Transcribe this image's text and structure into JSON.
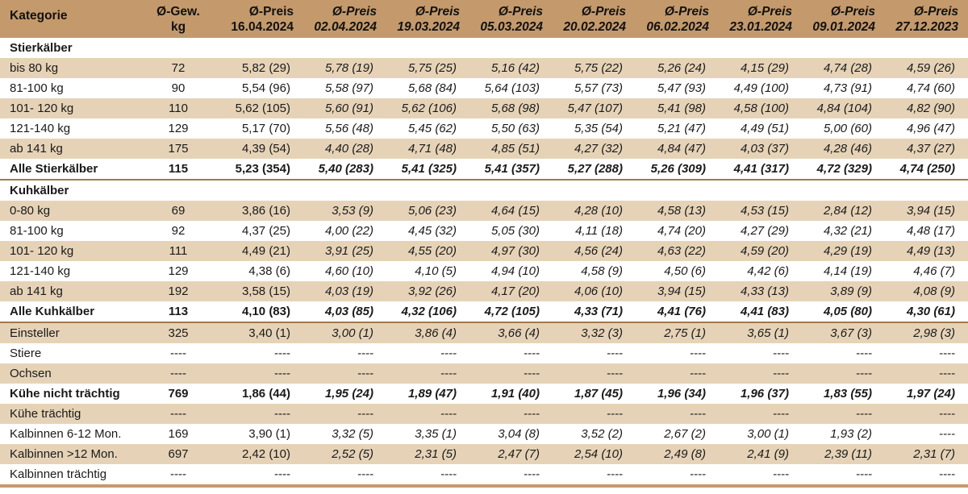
{
  "header": {
    "category": "Kategorie",
    "weight_line1": "Ø-Gew.",
    "weight_line2": "kg",
    "price_label": "Ø-Preis",
    "dates": [
      "16.04.2024",
      "02.04.2024",
      "19.03.2024",
      "05.03.2024",
      "20.02.2024",
      "06.02.2024",
      "23.01.2024",
      "09.01.2024",
      "27.12.2023"
    ]
  },
  "rows": [
    {
      "type": "section",
      "label": "Stierkälber"
    },
    {
      "type": "data",
      "label": "bis 80 kg",
      "weight": "72",
      "prices": [
        "5,82 (29)",
        "5,78 (19)",
        "5,75 (25)",
        "5,16 (42)",
        "5,75 (22)",
        "5,26 (24)",
        "4,15 (29)",
        "4,74 (28)",
        "4,59 (26)"
      ]
    },
    {
      "type": "data",
      "label": "81-100 kg",
      "weight": "90",
      "prices": [
        "5,54 (96)",
        "5,58 (97)",
        "5,68 (84)",
        "5,64 (103)",
        "5,57 (73)",
        "5,47 (93)",
        "4,49 (100)",
        "4,73 (91)",
        "4,74 (60)"
      ]
    },
    {
      "type": "data",
      "label": "101- 120 kg",
      "weight": "110",
      "prices": [
        "5,62 (105)",
        "5,60 (91)",
        "5,62 (106)",
        "5,68 (98)",
        "5,47 (107)",
        "5,41 (98)",
        "4,58 (100)",
        "4,84 (104)",
        "4,82 (90)"
      ]
    },
    {
      "type": "data",
      "label": "121-140 kg",
      "weight": "129",
      "prices": [
        "5,17 (70)",
        "5,56 (48)",
        "5,45 (62)",
        "5,50 (63)",
        "5,35 (54)",
        "5,21 (47)",
        "4,49 (51)",
        "5,00 (60)",
        "4,96 (47)"
      ]
    },
    {
      "type": "data",
      "label": "ab 141 kg",
      "weight": "175",
      "prices": [
        "4,39 (54)",
        "4,40 (28)",
        "4,71 (48)",
        "4,85 (51)",
        "4,27 (32)",
        "4,84 (47)",
        "4,03 (37)",
        "4,28 (46)",
        "4,37 (27)"
      ]
    },
    {
      "type": "total",
      "label": "Alle Stierkälber",
      "weight": "115",
      "prices": [
        "5,23 (354)",
        "5,40 (283)",
        "5,41 (325)",
        "5,41 (357)",
        "5,27 (288)",
        "5,26 (309)",
        "4,41 (317)",
        "4,72 (329)",
        "4,74 (250)"
      ]
    },
    {
      "type": "section",
      "label": "Kuhkälber"
    },
    {
      "type": "data",
      "label": "0-80 kg",
      "weight": "69",
      "prices": [
        "3,86 (16)",
        "3,53 (9)",
        "5,06 (23)",
        "4,64 (15)",
        "4,28 (10)",
        "4,58 (13)",
        "4,53 (15)",
        "2,84 (12)",
        "3,94 (15)"
      ]
    },
    {
      "type": "data",
      "label": "81-100 kg",
      "weight": "92",
      "prices": [
        "4,37 (25)",
        "4,00 (22)",
        "4,45 (32)",
        "5,05 (30)",
        "4,11 (18)",
        "4,74 (20)",
        "4,27 (29)",
        "4,32 (21)",
        "4,48 (17)"
      ]
    },
    {
      "type": "data",
      "label": "101- 120 kg",
      "weight": "111",
      "prices": [
        "4,49 (21)",
        "3,91 (25)",
        "4,55 (20)",
        "4,97 (30)",
        "4,56 (24)",
        "4,63 (22)",
        "4,59 (20)",
        "4,29 (19)",
        "4,49 (13)"
      ]
    },
    {
      "type": "data",
      "label": "121-140 kg",
      "weight": "129",
      "prices": [
        "4,38 (6)",
        "4,60 (10)",
        "4,10 (5)",
        "4,94 (10)",
        "4,58 (9)",
        "4,50 (6)",
        "4,42 (6)",
        "4,14 (19)",
        "4,46 (7)"
      ]
    },
    {
      "type": "data",
      "label": "ab 141 kg",
      "weight": "192",
      "prices": [
        "3,58 (15)",
        "4,03 (19)",
        "3,92 (26)",
        "4,17 (20)",
        "4,06 (10)",
        "3,94 (15)",
        "4,33 (13)",
        "3,89 (9)",
        "4,08 (9)"
      ]
    },
    {
      "type": "total",
      "label": "Alle Kuhkälber",
      "weight": "113",
      "prices": [
        "4,10 (83)",
        "4,03 (85)",
        "4,32 (106)",
        "4,72 (105)",
        "4,33 (71)",
        "4,41 (76)",
        "4,41 (83)",
        "4,05 (80)",
        "4,30 (61)"
      ]
    },
    {
      "type": "data",
      "label": "Einsteller",
      "weight": "325",
      "prices": [
        "3,40 (1)",
        "3,00 (1)",
        "3,86 (4)",
        "3,66 (4)",
        "3,32 (3)",
        "2,75 (1)",
        "3,65 (1)",
        "3,67 (3)",
        "2,98 (3)"
      ]
    },
    {
      "type": "data",
      "label": "Stiere",
      "weight": "----",
      "prices": [
        "----",
        "----",
        "----",
        "----",
        "----",
        "----",
        "----",
        "----",
        "----"
      ]
    },
    {
      "type": "data",
      "label": "Ochsen",
      "weight": "----",
      "prices": [
        "----",
        "----",
        "----",
        "----",
        "----",
        "----",
        "----",
        "----",
        "----"
      ]
    },
    {
      "type": "bold",
      "label": "Kühe nicht trächtig",
      "weight": "769",
      "prices": [
        "1,86 (44)",
        "1,95 (24)",
        "1,89 (47)",
        "1,91 (40)",
        "1,87 (45)",
        "1,96 (34)",
        "1,96 (37)",
        "1,83 (55)",
        "1,97 (24)"
      ]
    },
    {
      "type": "data",
      "label": "Kühe trächtig",
      "weight": "----",
      "prices": [
        "----",
        "----",
        "----",
        "----",
        "----",
        "----",
        "----",
        "----",
        "----"
      ]
    },
    {
      "type": "data",
      "label": "Kalbinnen 6-12 Mon.",
      "weight": "169",
      "prices": [
        "3,90 (1)",
        "3,32 (5)",
        "3,35 (1)",
        "3,04 (8)",
        "3,52 (2)",
        "2,67 (2)",
        "3,00 (1)",
        "1,93 (2)",
        "----"
      ]
    },
    {
      "type": "data",
      "label": "Kalbinnen >12 Mon.",
      "weight": "697",
      "prices": [
        "2,42 (10)",
        "2,52 (5)",
        "2,31 (5)",
        "2,47 (7)",
        "2,54 (10)",
        "2,49 (8)",
        "2,41 (9)",
        "2,39 (11)",
        "2,31 (7)"
      ]
    },
    {
      "type": "data",
      "label": "Kalbinnen trächtig",
      "weight": "----",
      "prices": [
        "----",
        "----",
        "----",
        "----",
        "----",
        "----",
        "----",
        "----",
        "----"
      ]
    }
  ]
}
